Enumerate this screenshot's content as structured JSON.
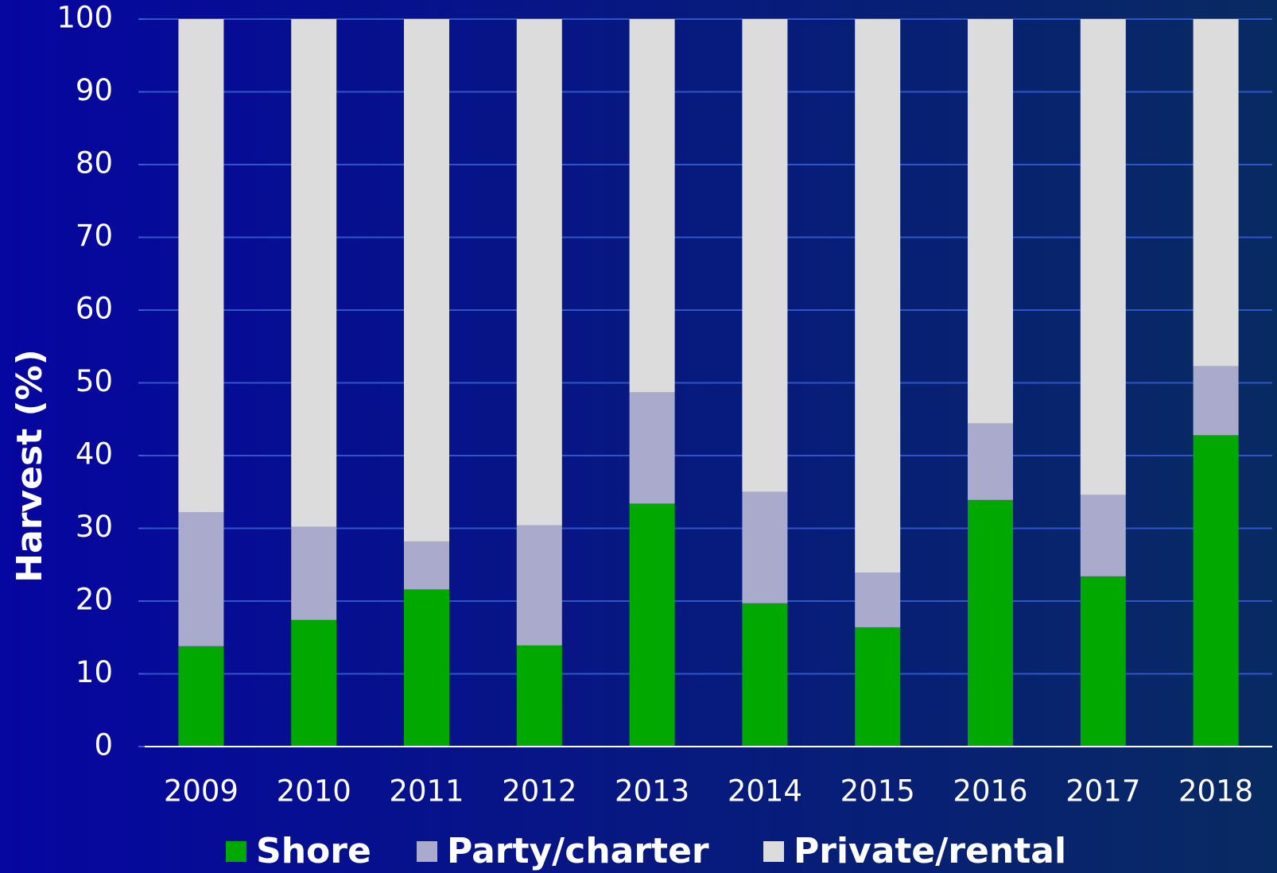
{
  "chart_data": {
    "type": "stacked_bar",
    "y_label": "Harvest (%)",
    "categories": [
      "2009",
      "2010",
      "2011",
      "2012",
      "2013",
      "2014",
      "2015",
      "2016",
      "2017",
      "2018"
    ],
    "series": [
      {
        "name": "Shore",
        "color": "#00a800",
        "values": [
          13.8,
          17.4,
          21.6,
          13.9,
          33.4,
          19.7,
          16.4,
          33.9,
          23.4,
          42.8
        ]
      },
      {
        "name": "Party/charter",
        "color": "#aaaacc",
        "values": [
          18.4,
          12.8,
          6.6,
          16.5,
          15.3,
          15.3,
          7.5,
          10.5,
          11.2,
          9.5
        ]
      },
      {
        "name": "Private/rental",
        "color": "#dcdcdc",
        "values": [
          67.8,
          69.8,
          71.8,
          69.6,
          51.3,
          65.0,
          76.1,
          55.6,
          65.4,
          47.7
        ]
      }
    ],
    "ylim": [
      0,
      100
    ],
    "yticks": [
      0,
      10,
      20,
      30,
      40,
      50,
      60,
      70,
      80,
      90,
      100
    ],
    "grid": true
  }
}
